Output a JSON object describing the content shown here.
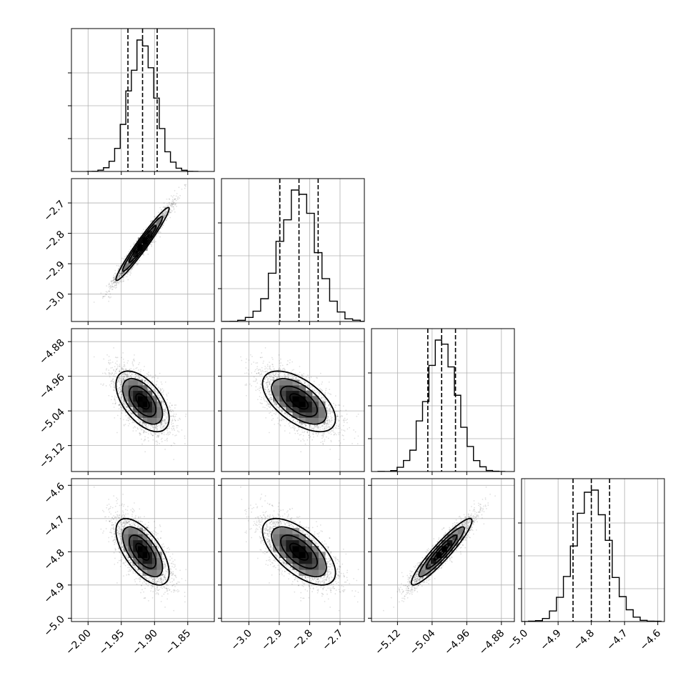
{
  "chart_data": {
    "type": "corner",
    "parameters": [
      {
        "mean": -1.918,
        "std": 0.02,
        "quantiles": [
          -1.94,
          -1.918,
          -1.896
        ],
        "range": [
          -2.025,
          -1.81
        ],
        "ticks": [
          -2.0,
          -1.95,
          -1.9,
          -1.85
        ],
        "tick_labels": [
          "−2.00",
          "−1.95",
          "−1.90",
          "−1.85"
        ]
      },
      {
        "mean": -2.835,
        "std": 0.06,
        "quantiles": [
          -2.898,
          -2.835,
          -2.772
        ],
        "range": [
          -3.09,
          -2.62
        ],
        "ticks": [
          -3.0,
          -2.9,
          -2.8,
          -2.7
        ],
        "tick_labels": [
          "−3.0",
          "−2.9",
          "−2.8",
          "−2.7"
        ]
      },
      {
        "mean": -5.018,
        "std": 0.035,
        "quantiles": [
          -5.05,
          -5.018,
          -4.986
        ],
        "range": [
          -5.18,
          -4.85
        ],
        "ticks": [
          -5.12,
          -5.04,
          -4.96,
          -4.88
        ],
        "tick_labels": [
          "−5.12",
          "−5.04",
          "−4.96",
          "−4.88"
        ]
      },
      {
        "mean": -4.8,
        "std": 0.05,
        "quantiles": [
          -4.855,
          -4.8,
          -4.745
        ],
        "range": [
          -5.01,
          -4.58
        ],
        "ticks": [
          -5.0,
          -4.9,
          -4.8,
          -4.7,
          -4.6
        ],
        "tick_labels": [
          "−5.0",
          "−4.9",
          "−4.8",
          "−4.7",
          "−4.6"
        ]
      }
    ],
    "correlations": [
      [
        1.0,
        0.97,
        -0.55,
        -0.63
      ],
      [
        0.97,
        1.0,
        -0.58,
        -0.63
      ],
      [
        -0.55,
        -0.58,
        1.0,
        0.93
      ],
      [
        -0.63,
        -0.63,
        0.93,
        1.0
      ]
    ],
    "histogram": {
      "bins": 20,
      "style": "step"
    },
    "quantile_lines": "dashed",
    "contour_levels_sigma": [
      0.5,
      1.0,
      1.5,
      2.0
    ],
    "grid": true
  }
}
